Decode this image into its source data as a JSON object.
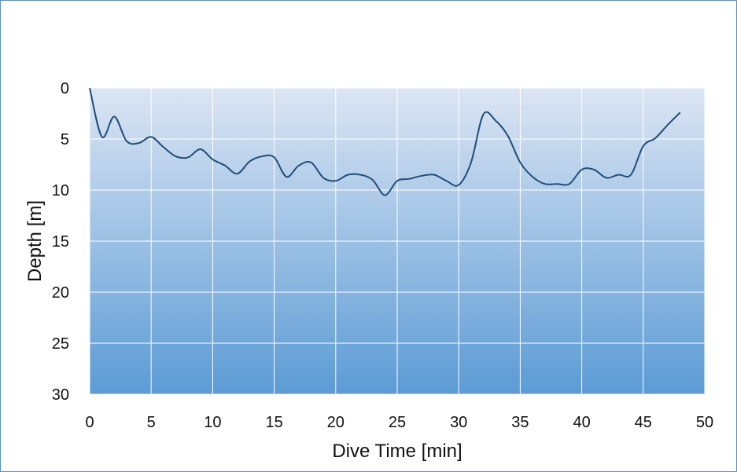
{
  "chart_data": {
    "type": "line",
    "title": "",
    "xlabel": "Dive Time [min]",
    "ylabel": "Depth [m]",
    "xlim": [
      0,
      50
    ],
    "ylim": [
      0,
      30
    ],
    "y_inverted": true,
    "x_ticks": [
      0,
      5,
      10,
      15,
      20,
      25,
      30,
      35,
      40,
      45,
      50
    ],
    "y_ticks": [
      0,
      5,
      10,
      15,
      20,
      25,
      30
    ],
    "grid": true,
    "legend": "none",
    "colors": {
      "line": "#1f4e79",
      "plot_top": "#dce5f3",
      "plot_bottom": "#5b9bd5",
      "grid": "#ffffff",
      "border": "#5b8fcb"
    },
    "series": [
      {
        "x": [
          0,
          1,
          2,
          3,
          4,
          5,
          6,
          7,
          8,
          9,
          10,
          11,
          12,
          13,
          14,
          15,
          16,
          17,
          18,
          19,
          20,
          21,
          22,
          23,
          24,
          25,
          26,
          27,
          28,
          29,
          30,
          31,
          32,
          33,
          34,
          35,
          36,
          37,
          38,
          39,
          40,
          41,
          42,
          43,
          44,
          45,
          46,
          47,
          48
        ],
        "values": [
          0,
          4.8,
          2.8,
          5.2,
          5.4,
          4.8,
          5.8,
          6.7,
          6.8,
          6.0,
          7.0,
          7.6,
          8.4,
          7.2,
          6.7,
          6.8,
          8.7,
          7.6,
          7.3,
          8.8,
          9.1,
          8.5,
          8.5,
          9.0,
          10.5,
          9.1,
          8.9,
          8.6,
          8.5,
          9.1,
          9.5,
          7.3,
          2.6,
          3.2,
          4.7,
          7.3,
          8.7,
          9.4,
          9.4,
          9.4,
          8.0,
          8.0,
          8.8,
          8.5,
          8.5,
          5.7,
          4.9,
          3.6,
          2.4
        ]
      }
    ]
  }
}
